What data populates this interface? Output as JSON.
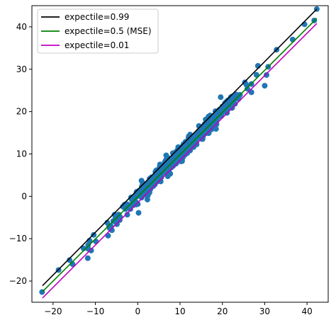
{
  "chart_data": {
    "type": "scatter",
    "title": "",
    "xlabel": "",
    "ylabel": "",
    "xlim": [
      -25,
      45
    ],
    "ylim": [
      -25,
      45
    ],
    "grid": false,
    "legend_position": "top-left",
    "xticks": [
      -20,
      -10,
      0,
      10,
      20,
      30,
      40
    ],
    "yticks": [
      -20,
      -10,
      0,
      10,
      20,
      30,
      40
    ],
    "xtick_labels": [
      "−20",
      "−10",
      "0",
      "10",
      "20",
      "30",
      "40"
    ],
    "ytick_labels": [
      "−20",
      "−10",
      "0",
      "10",
      "20",
      "30",
      "40"
    ],
    "scatter": {
      "color": "#1f77b4",
      "x_range": [
        -22.5,
        42.3
      ],
      "n_points": 520,
      "noise_scale": 0.9,
      "outliers": [
        [
          -22.6,
          -22.6
        ],
        [
          -18.7,
          -17.4
        ],
        [
          -15.4,
          -16.0
        ],
        [
          -12.8,
          -12.3
        ],
        [
          -11.8,
          -14.6
        ],
        [
          -11.7,
          -12.4
        ],
        [
          -11.0,
          -12.8
        ],
        [
          -10.4,
          -9.1
        ],
        [
          -6.1,
          -8.0
        ],
        [
          -4.5,
          -4.3
        ],
        [
          0.2,
          -3.9
        ],
        [
          0.9,
          3.7
        ],
        [
          2.4,
          0.2
        ],
        [
          4.4,
          4.2
        ],
        [
          15.5,
          16.5
        ],
        [
          18.5,
          15.9
        ],
        [
          19.6,
          23.4
        ],
        [
          23.8,
          23.0
        ],
        [
          28.4,
          30.8
        ],
        [
          30.0,
          26.1
        ],
        [
          32.8,
          34.6
        ],
        [
          36.6,
          37.0
        ],
        [
          39.4,
          40.6
        ],
        [
          41.7,
          41.5
        ],
        [
          42.3,
          44.2
        ]
      ]
    },
    "series": [
      {
        "name": "expectile=0.99",
        "color": "#000000",
        "x": [
          -22.5,
          42.3
        ],
        "y": [
          -21.1,
          44.2
        ]
      },
      {
        "name": "expectile=0.5 (MSE)",
        "color": "#008000",
        "x": [
          -22.5,
          42.3
        ],
        "y": [
          -22.5,
          42.0
        ]
      },
      {
        "name": "expectile=0.01",
        "color": "#bf00bf",
        "x": [
          -22.5,
          42.3
        ],
        "y": [
          -24.0,
          40.8
        ]
      }
    ]
  }
}
